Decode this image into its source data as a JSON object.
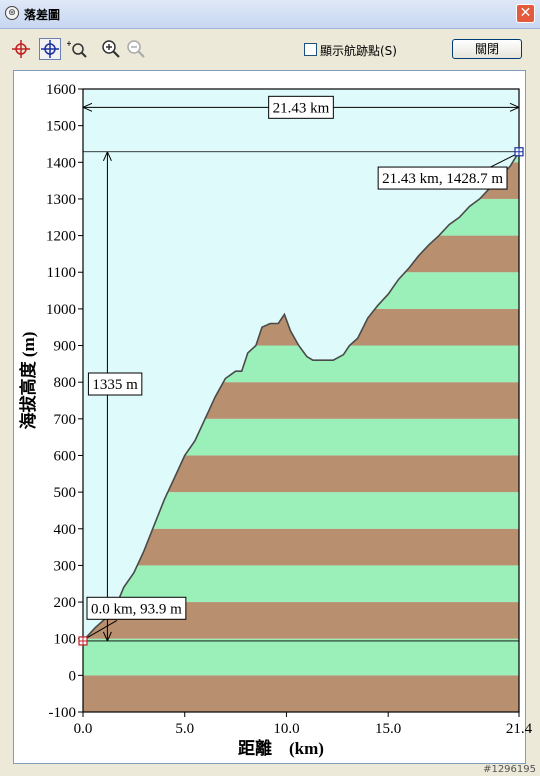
{
  "window": {
    "title": "落差圖",
    "close_symbol": "✕"
  },
  "toolbar": {
    "show_waypoints_label": "顯示航跡點(S)",
    "close_button_label": "關閉"
  },
  "colors": {
    "sky": "#dffafa",
    "band_green": "#9af0b8",
    "band_brown": "#b89070",
    "profile_line": "#4a4a4a"
  },
  "chart_data": {
    "type": "area",
    "title": "",
    "xlabel": "距離　(km)",
    "ylabel": "海拔高度 (m)",
    "xlim": [
      0,
      21.43
    ],
    "ylim": [
      -100,
      1600
    ],
    "x_ticks": [
      "0.0",
      "5.0",
      "10.0",
      "15.0",
      "21.4"
    ],
    "x_tick_values": [
      0,
      5,
      10,
      15,
      21.43
    ],
    "y_ticks": [
      "-100",
      "0",
      "100",
      "200",
      "300",
      "400",
      "500",
      "600",
      "700",
      "800",
      "900",
      "1000",
      "1100",
      "1200",
      "1300",
      "1400",
      "1500",
      "1600"
    ],
    "band_height_m": 100,
    "profile": {
      "x": [
        0,
        0.6,
        1.2,
        1.7,
        2.0,
        2.5,
        3.0,
        3.5,
        4.0,
        4.5,
        5.0,
        5.5,
        6.0,
        6.5,
        7.0,
        7.5,
        7.8,
        8.1,
        8.5,
        8.8,
        9.2,
        9.6,
        9.9,
        10.2,
        10.6,
        11.0,
        11.3,
        11.8,
        12.3,
        12.8,
        13.1,
        13.5,
        14.0,
        14.5,
        15.0,
        15.5,
        16.0,
        16.5,
        17.0,
        17.5,
        18.0,
        18.5,
        19.0,
        19.5,
        20.0,
        20.5,
        21.0,
        21.43
      ],
      "y": [
        93.9,
        130,
        160,
        200,
        240,
        280,
        340,
        410,
        480,
        540,
        600,
        640,
        700,
        760,
        810,
        830,
        830,
        880,
        900,
        950,
        960,
        960,
        985,
        940,
        900,
        870,
        860,
        860,
        860,
        875,
        900,
        920,
        975,
        1010,
        1040,
        1080,
        1110,
        1145,
        1175,
        1200,
        1230,
        1250,
        1280,
        1300,
        1330,
        1360,
        1390,
        1428.7
      ]
    },
    "annotations": {
      "distance_label": "21.43 km",
      "climb_label": "1335 m",
      "start_label": "0.0 km, 93.9 m",
      "end_label": "21.43 km, 1428.7 m"
    },
    "start_point": {
      "x": 0.0,
      "y": 93.9
    },
    "end_point": {
      "x": 21.43,
      "y": 1428.7
    },
    "grid": false
  },
  "footer": {
    "id_text": "#1296195"
  }
}
